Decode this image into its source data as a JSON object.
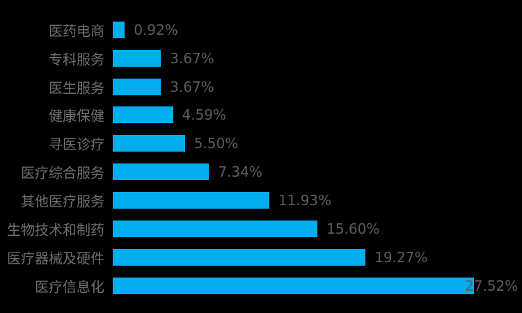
{
  "chart_data": {
    "type": "bar",
    "orientation": "horizontal",
    "title": "",
    "xlabel": "",
    "ylabel": "",
    "grid": false,
    "legend": false,
    "axis_lines": false,
    "xlim": [
      0,
      31.2
    ],
    "categories": [
      "医药电商",
      "专科服务",
      "医生服务",
      "健康保健",
      "寻医诊疗",
      "医疗综合服务",
      "其他医疗服务",
      "生物技术和制药",
      "医疗器械及硬件",
      "医疗信息化"
    ],
    "values": [
      0.92,
      3.67,
      3.67,
      4.59,
      5.5,
      7.34,
      11.93,
      15.6,
      19.27,
      27.52
    ],
    "value_labels": [
      "0.92%",
      "3.67%",
      "3.67%",
      "4.59%",
      "5.50%",
      "7.34%",
      "11.93%",
      "15.60%",
      "19.27%",
      "27.52%"
    ],
    "colors": {
      "background": "#000000",
      "bar": "#00AEEF",
      "category_label": "#6e6e6e",
      "value_label": "#5c5c5c"
    }
  }
}
